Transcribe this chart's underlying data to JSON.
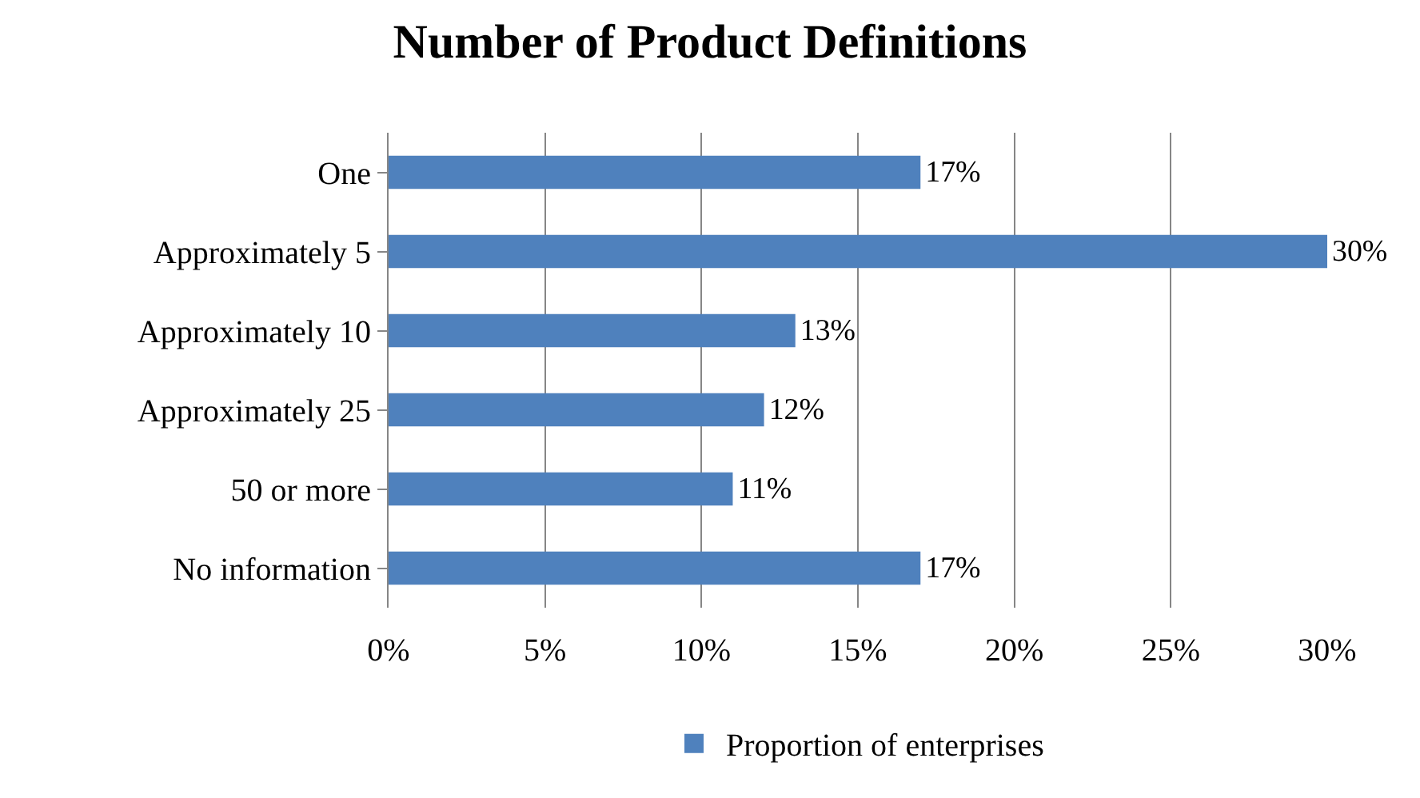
{
  "chart_data": {
    "type": "bar",
    "orientation": "horizontal",
    "title": "Number of Product Definitions",
    "categories": [
      "One",
      "Approximately 5",
      "Approximately 10",
      "Approximately 25",
      "50 or more",
      "No information"
    ],
    "series": [
      {
        "name": "Proportion of enterprises",
        "color": "#4f81bd",
        "values": [
          17,
          30,
          13,
          12,
          11,
          17
        ],
        "value_labels": [
          "17%",
          "30%",
          "13%",
          "12%",
          "11%",
          "17%"
        ]
      }
    ],
    "xlim": [
      0,
      30
    ],
    "xticks": [
      {
        "value": 0,
        "label": "0%"
      },
      {
        "value": 5,
        "label": "5%"
      },
      {
        "value": 10,
        "label": "10%"
      },
      {
        "value": 15,
        "label": "15%"
      },
      {
        "value": 20,
        "label": "20%"
      },
      {
        "value": 25,
        "label": "25%"
      },
      {
        "value": 30,
        "label": "30%"
      }
    ],
    "grid": "x",
    "legend": "bottom"
  }
}
